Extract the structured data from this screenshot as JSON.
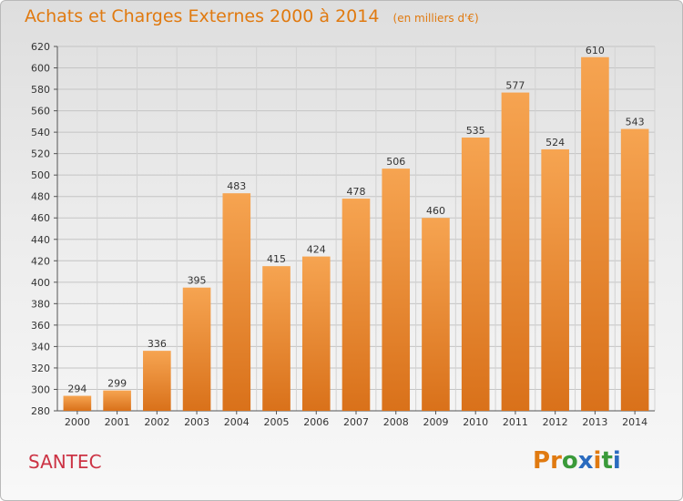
{
  "header": {
    "title": "Achats et Charges Externes 2000 à 2014",
    "subtitle": "(en milliers d'€)"
  },
  "footer": {
    "commune": "SANTEC",
    "logo_text": "Proxiti",
    "logo_colors": [
      "#e07a10",
      "#e07a10",
      "#3a9a3a",
      "#2a6bbf",
      "#e07a10",
      "#3a9a3a",
      "#2a6bbf"
    ]
  },
  "colors": {
    "bar_top": "#f6a451",
    "bar_bottom": "#d9711a",
    "title": "#e07a10",
    "commune": "#cc3344"
  },
  "chart_data": {
    "type": "bar",
    "title": "Achats et Charges Externes 2000 à 2014",
    "subtitle": "(en milliers d'€)",
    "categories": [
      "2000",
      "2001",
      "2002",
      "2003",
      "2004",
      "2005",
      "2006",
      "2007",
      "2008",
      "2009",
      "2010",
      "2011",
      "2012",
      "2013",
      "2014"
    ],
    "values": [
      294,
      299,
      336,
      395,
      483,
      415,
      424,
      478,
      506,
      460,
      535,
      577,
      524,
      610,
      543
    ],
    "ylim": [
      280,
      620
    ],
    "yticks": [
      280,
      300,
      320,
      340,
      360,
      380,
      400,
      420,
      440,
      460,
      480,
      500,
      520,
      540,
      560,
      580,
      600,
      620
    ],
    "grid": true,
    "xlabel": "",
    "ylabel": ""
  }
}
